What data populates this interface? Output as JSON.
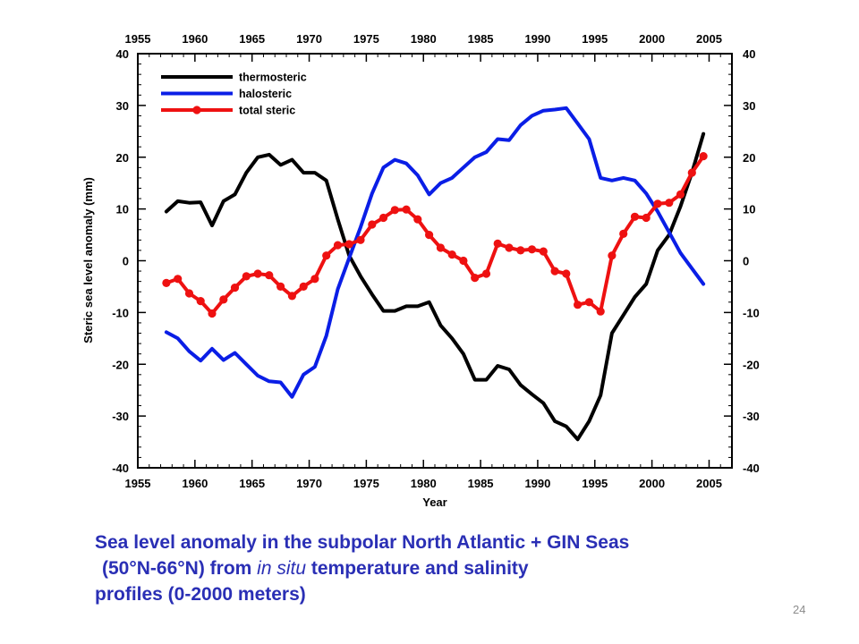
{
  "chart_data": {
    "type": "line",
    "title": "",
    "xlabel": "Year",
    "ylabel": "Steric sea level anomaly (mm)",
    "xlim": [
      1955,
      2007
    ],
    "ylim": [
      -40,
      40
    ],
    "xticks": [
      1955,
      1960,
      1965,
      1970,
      1975,
      1980,
      1985,
      1990,
      1995,
      2000,
      2005
    ],
    "yticks": [
      -40,
      -30,
      -20,
      -10,
      0,
      10,
      20,
      30,
      40
    ],
    "grid": false,
    "legend": "top-left",
    "x": [
      1957.5,
      1958.5,
      1959.5,
      1960.5,
      1961.5,
      1962.5,
      1963.5,
      1964.5,
      1965.5,
      1966.5,
      1967.5,
      1968.5,
      1969.5,
      1970.5,
      1971.5,
      1972.5,
      1973.5,
      1974.5,
      1975.5,
      1976.5,
      1977.5,
      1978.5,
      1979.5,
      1980.5,
      1981.5,
      1982.5,
      1983.5,
      1984.5,
      1985.5,
      1986.5,
      1987.5,
      1988.5,
      1989.5,
      1990.5,
      1991.5,
      1992.5,
      1993.5,
      1994.5,
      1995.5,
      1996.5,
      1997.5,
      1998.5,
      1999.5,
      2000.5,
      2001.5,
      2002.5,
      2003.5,
      2004.5
    ],
    "series": [
      {
        "name": "thermosteric",
        "color": "#000000",
        "markers": false,
        "values": [
          9.5,
          11.5,
          11.2,
          11.3,
          6.8,
          11.5,
          12.8,
          17,
          20,
          20.5,
          18.5,
          19.5,
          17,
          17,
          15.5,
          8,
          1,
          -3,
          -6.5,
          -9.7,
          -9.7,
          -8.8,
          -8.8,
          -8,
          -12.5,
          -15,
          -18,
          -23,
          -23,
          -20.3,
          -21,
          -24,
          -25.8,
          -27.5,
          -31,
          -32,
          -34.5,
          -31,
          -26,
          -14,
          -10.5,
          -7,
          -4.5,
          2,
          5,
          10.5,
          17,
          24.5
        ]
      },
      {
        "name": "halosteric",
        "color": "#0a1ee6",
        "markers": false,
        "values": [
          -13.8,
          -15,
          -17.5,
          -19.3,
          -17,
          -19.2,
          -17.8,
          -20,
          -22.2,
          -23.3,
          -23.5,
          -26.3,
          -22,
          -20.5,
          -14.5,
          -5.5,
          0.5,
          6.5,
          13,
          18,
          19.5,
          18.8,
          16.5,
          12.8,
          15,
          16,
          18,
          20,
          21,
          23.5,
          23.3,
          26.2,
          28,
          29,
          29.2,
          29.5,
          26.5,
          23.5,
          16,
          15.5,
          16,
          15.5,
          13,
          9.5,
          5.5,
          1.5,
          -1.5,
          -4.5
        ]
      },
      {
        "name": "total steric",
        "color": "#ee1111",
        "markers": true,
        "values": [
          -4.3,
          -3.5,
          -6.3,
          -7.8,
          -10.2,
          -7.5,
          -5.2,
          -3,
          -2.5,
          -2.8,
          -5,
          -6.8,
          -5,
          -3.5,
          1,
          3,
          3.2,
          4,
          7,
          8.3,
          9.8,
          9.9,
          8,
          5,
          2.5,
          1.2,
          0,
          -3.3,
          -2.5,
          3.3,
          2.5,
          2,
          2.2,
          1.8,
          -2,
          -2.5,
          -8.5,
          -8,
          -9.8,
          1,
          5.2,
          8.5,
          8.3,
          11,
          11.2,
          12.8,
          17,
          20.2
        ]
      }
    ]
  },
  "caption": {
    "line1": "Sea level anomaly in the subpolar North Atlantic + GIN Seas",
    "line2_pre": "(50°N-66°N) from ",
    "line2_italic": "in situ",
    "line2_post": " temperature and salinity",
    "line3": "profiles (0-2000 meters)"
  },
  "page_number": "24"
}
